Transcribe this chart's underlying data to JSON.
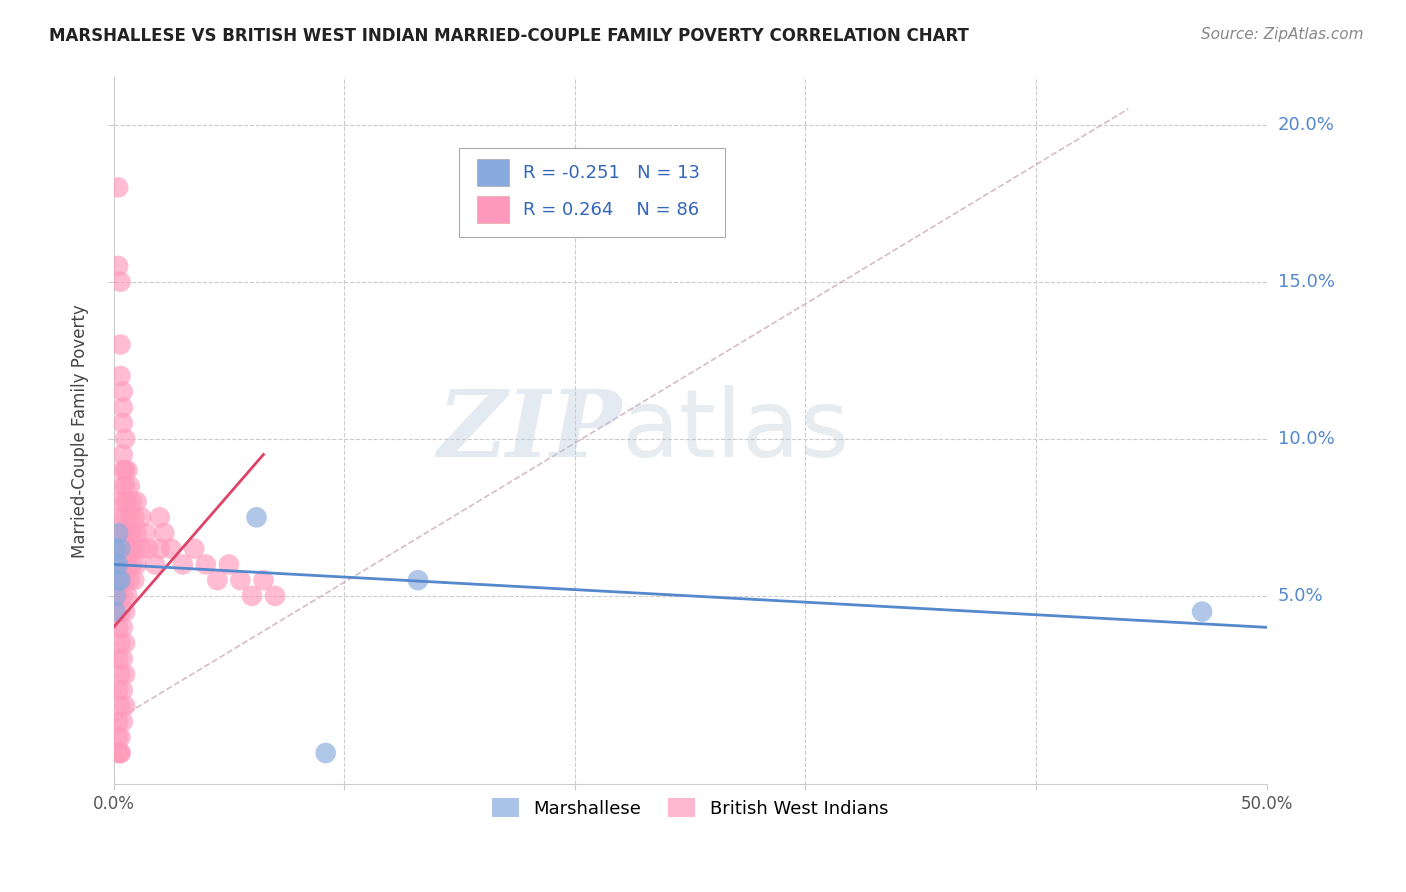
{
  "title": "MARSHALLESE VS BRITISH WEST INDIAN MARRIED-COUPLE FAMILY POVERTY CORRELATION CHART",
  "source": "Source: ZipAtlas.com",
  "ylabel": "Married-Couple Family Poverty",
  "xlim": [
    0.0,
    0.5
  ],
  "ylim": [
    -0.01,
    0.215
  ],
  "watermark_zip": "ZIP",
  "watermark_atlas": "atlas",
  "legend_r_blue": "-0.251",
  "legend_n_blue": "13",
  "legend_r_pink": "0.264",
  "legend_n_pink": "86",
  "blue_color": "#88AADD",
  "pink_color": "#FF99BB",
  "blue_line_color": "#5588CC",
  "pink_line_color": "#DD4466",
  "pink_dashed_color": "#CCAABB",
  "background_color": "#FFFFFF",
  "grid_color": "#CCCCCC",
  "title_fontsize": 12,
  "source_fontsize": 11,
  "marshallese_x": [
    0.001,
    0.001,
    0.001,
    0.001,
    0.002,
    0.002,
    0.002,
    0.003,
    0.003,
    0.062,
    0.132,
    0.092,
    0.472
  ],
  "marshallese_y": [
    0.06,
    0.065,
    0.045,
    0.05,
    0.06,
    0.055,
    0.07,
    0.055,
    0.065,
    0.075,
    0.055,
    0.0,
    0.045
  ],
  "bwi_x": [
    0.002,
    0.002,
    0.002,
    0.002,
    0.002,
    0.002,
    0.002,
    0.002,
    0.002,
    0.002,
    0.002,
    0.003,
    0.003,
    0.003,
    0.003,
    0.003,
    0.003,
    0.003,
    0.003,
    0.003,
    0.003,
    0.003,
    0.003,
    0.003,
    0.003,
    0.004,
    0.004,
    0.004,
    0.004,
    0.004,
    0.004,
    0.004,
    0.004,
    0.004,
    0.004,
    0.004,
    0.004,
    0.004,
    0.005,
    0.005,
    0.005,
    0.005,
    0.005,
    0.005,
    0.005,
    0.005,
    0.005,
    0.005,
    0.005,
    0.005,
    0.006,
    0.006,
    0.006,
    0.006,
    0.006,
    0.007,
    0.007,
    0.007,
    0.007,
    0.008,
    0.008,
    0.008,
    0.009,
    0.009,
    0.009,
    0.01,
    0.01,
    0.01,
    0.012,
    0.012,
    0.014,
    0.015,
    0.018,
    0.02,
    0.02,
    0.022,
    0.025,
    0.03,
    0.035,
    0.04,
    0.045,
    0.05,
    0.055,
    0.06,
    0.065,
    0.07
  ],
  "bwi_y": [
    0.18,
    0.155,
    0.06,
    0.055,
    0.05,
    0.04,
    0.03,
    0.02,
    0.01,
    0.005,
    0.0,
    0.15,
    0.13,
    0.12,
    0.08,
    0.075,
    0.065,
    0.055,
    0.045,
    0.035,
    0.025,
    0.015,
    0.005,
    0.0,
    0.0,
    0.115,
    0.11,
    0.105,
    0.095,
    0.09,
    0.085,
    0.07,
    0.06,
    0.05,
    0.04,
    0.03,
    0.02,
    0.01,
    0.1,
    0.09,
    0.085,
    0.08,
    0.075,
    0.07,
    0.065,
    0.055,
    0.045,
    0.035,
    0.025,
    0.015,
    0.09,
    0.08,
    0.07,
    0.06,
    0.05,
    0.085,
    0.075,
    0.065,
    0.055,
    0.08,
    0.07,
    0.06,
    0.075,
    0.065,
    0.055,
    0.08,
    0.07,
    0.06,
    0.075,
    0.065,
    0.07,
    0.065,
    0.06,
    0.075,
    0.065,
    0.07,
    0.065,
    0.06,
    0.065,
    0.06,
    0.055,
    0.06,
    0.055,
    0.05,
    0.055,
    0.05
  ],
  "blue_line_x": [
    0.0,
    0.5
  ],
  "blue_line_y": [
    0.06,
    0.04
  ],
  "pink_solid_line_x": [
    0.0,
    0.065
  ],
  "pink_solid_line_y": [
    0.04,
    0.095
  ],
  "pink_dashed_line_x": [
    0.0,
    0.44
  ],
  "pink_dashed_line_y": [
    0.01,
    0.205
  ]
}
